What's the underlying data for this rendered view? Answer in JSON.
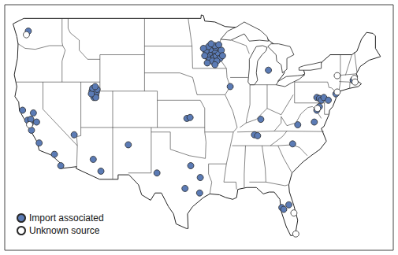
{
  "chart_data": {
    "type": "scatter",
    "series": [
      {
        "name": "Import associated",
        "color": "#5b7bb5",
        "marker": "circle",
        "x": [
          -122.3,
          -123.2,
          -122.4,
          -122.0,
          -121.9,
          -121.5,
          -121.0,
          -121.8,
          -120.6,
          -118.2,
          -117.2,
          -115.1,
          -112.1,
          -110.9,
          -106.6,
          -102.1,
          -96.8,
          -95.3,
          -97.7,
          -95.4,
          -111.9,
          -112.1,
          -111.7,
          -111.9,
          -112.3,
          -111.6,
          -112.0,
          -111.7,
          -112.4,
          -111.5,
          -112.2,
          -111.8,
          -97.4,
          -96.9,
          -93.3,
          -93.0,
          -93.6,
          -93.2,
          -92.8,
          -93.5,
          -93.9,
          -94.2,
          -92.5,
          -93.1,
          -93.7,
          -94.4,
          -92.9,
          -92.2,
          -93.9,
          -93.4,
          -92.7,
          -94.6,
          -92.0,
          -93.0,
          -94.0,
          -91.8,
          -94.8,
          -93.6,
          -92.4,
          -94.2,
          -93.0,
          -90.6,
          -84.6,
          -85.8,
          -86.8,
          -86.3,
          -80.8,
          -80.0,
          -77.4,
          -77.0,
          -76.6,
          -76.3,
          -75.9,
          -75.2,
          -76.6,
          -77.0,
          -74.0,
          -71.3,
          -82.5,
          -82.2,
          -81.4
        ],
        "y": [
          47.6,
          38.9,
          37.8,
          37.4,
          37.9,
          38.6,
          37.6,
          36.7,
          35.3,
          34.05,
          32.8,
          36.2,
          33.5,
          32.2,
          35.1,
          32.0,
          32.8,
          31.5,
          30.3,
          29.8,
          40.8,
          40.6,
          40.6,
          41.1,
          41.0,
          40.9,
          40.3,
          40.3,
          40.7,
          41.2,
          41.3,
          41.5,
          38.0,
          38.1,
          45.0,
          45.1,
          44.9,
          44.7,
          44.9,
          45.3,
          45.1,
          44.8,
          45.2,
          45.5,
          45.6,
          45.4,
          45.8,
          44.6,
          44.4,
          44.3,
          44.3,
          44.9,
          45.5,
          46.0,
          45.9,
          44.9,
          45.7,
          46.2,
          46.1,
          44.1,
          43.9,
          41.5,
          43.3,
          37.9,
          36.2,
          36.1,
          35.2,
          37.3,
          37.6,
          40.3,
          40.2,
          40.0,
          40.3,
          40.0,
          39.3,
          38.9,
          40.7,
          42.2,
          28.2,
          28.0,
          28.5
        ]
      },
      {
        "name": "Unknown source",
        "color": "#ffffff",
        "marker": "circle",
        "x": [
          -122.6,
          -122.1,
          -76.9,
          -73.8,
          -73.8,
          -71.1,
          -71.0,
          -80.6,
          -80.3
        ],
        "y": [
          47.2,
          37.3,
          39.1,
          40.9,
          42.7,
          42.4,
          42.0,
          27.6,
          25.3
        ]
      }
    ],
    "xlim": [
      -126,
      -65
    ],
    "ylim": [
      23.5,
      50.5
    ],
    "grid": false,
    "legend": "lower left",
    "tick_labels": false
  }
}
